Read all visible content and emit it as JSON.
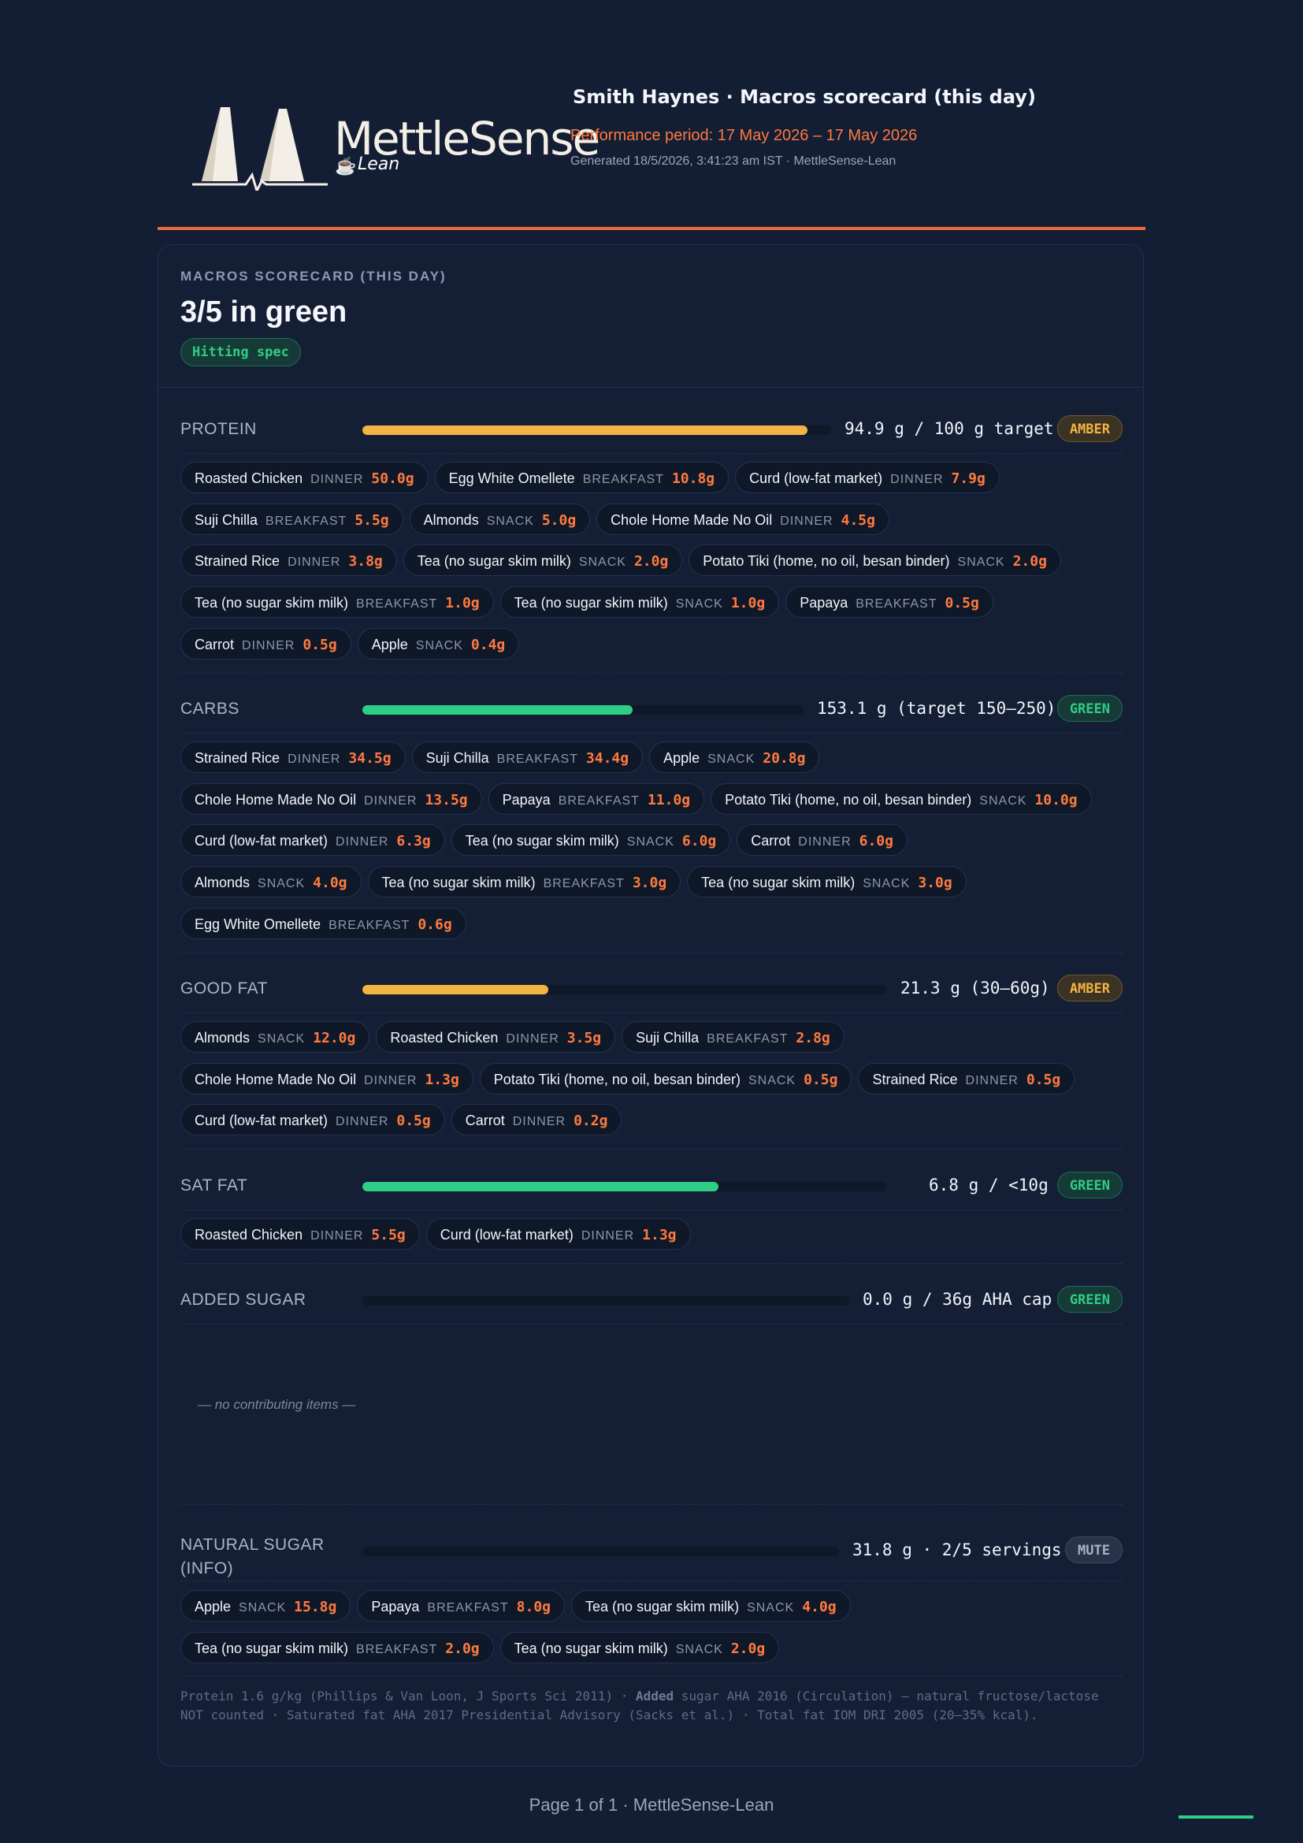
{
  "header": {
    "brand_name": "MettleSense",
    "brand_sub": "Lean",
    "title": "Smith Haynes · Macros scorecard (this day)",
    "period": "Performance period: 17 May 2026 – 17 May 2026",
    "generated": "Generated 18/5/2026, 3:41:23 am IST · MettleSense-Lean"
  },
  "colors": {
    "amber": "#f3b441",
    "green": "#2fce86",
    "accent": "#ff7a3d",
    "rule": "#ef6a3a"
  },
  "card": {
    "kicker": "MACROS SCORECARD (THIS DAY)",
    "score": "3/5 in green",
    "badge": "Hitting spec"
  },
  "metrics": [
    {
      "label": "PROTEIN",
      "value": "94.9 g / 100 g target",
      "status": "AMBER",
      "fill_fraction": 0.949,
      "bar_color": "amber",
      "rows": [
        [
          {
            "name": "Roasted Chicken",
            "meal": "DINNER",
            "amt": "50.0g"
          },
          {
            "name": "Egg White Omellete",
            "meal": "BREAKFAST",
            "amt": "10.8g"
          },
          {
            "name": "Curd (low-fat market)",
            "meal": "DINNER",
            "amt": "7.9g"
          }
        ],
        [
          {
            "name": "Suji Chilla",
            "meal": "BREAKFAST",
            "amt": "5.5g"
          },
          {
            "name": "Almonds",
            "meal": "SNACK",
            "amt": "5.0g"
          },
          {
            "name": "Chole Home Made No Oil",
            "meal": "DINNER",
            "amt": "4.5g"
          }
        ],
        [
          {
            "name": "Strained Rice",
            "meal": "DINNER",
            "amt": "3.8g"
          },
          {
            "name": "Tea (no sugar skim milk)",
            "meal": "SNACK",
            "amt": "2.0g"
          },
          {
            "name": "Potato Tiki (home, no oil, besan binder)",
            "meal": "SNACK",
            "amt": "2.0g"
          }
        ],
        [
          {
            "name": "Tea (no sugar skim milk)",
            "meal": "BREAKFAST",
            "amt": "1.0g"
          },
          {
            "name": "Tea (no sugar skim milk)",
            "meal": "SNACK",
            "amt": "1.0g"
          },
          {
            "name": "Papaya",
            "meal": "BREAKFAST",
            "amt": "0.5g"
          }
        ],
        [
          {
            "name": "Carrot",
            "meal": "DINNER",
            "amt": "0.5g"
          },
          {
            "name": "Apple",
            "meal": "SNACK",
            "amt": "0.4g"
          }
        ]
      ]
    },
    {
      "label": "CARBS",
      "value": "153.1 g (target 150–250)",
      "status": "GREEN",
      "fill_fraction": 0.612,
      "bar_color": "green",
      "rows": [
        [
          {
            "name": "Strained Rice",
            "meal": "DINNER",
            "amt": "34.5g"
          },
          {
            "name": "Suji Chilla",
            "meal": "BREAKFAST",
            "amt": "34.4g"
          },
          {
            "name": "Apple",
            "meal": "SNACK",
            "amt": "20.8g"
          }
        ],
        [
          {
            "name": "Chole Home Made No Oil",
            "meal": "DINNER",
            "amt": "13.5g"
          },
          {
            "name": "Papaya",
            "meal": "BREAKFAST",
            "amt": "11.0g"
          },
          {
            "name": "Potato Tiki (home, no oil, besan binder)",
            "meal": "SNACK",
            "amt": "10.0g"
          }
        ],
        [
          {
            "name": "Curd (low-fat market)",
            "meal": "DINNER",
            "amt": "6.3g"
          },
          {
            "name": "Tea (no sugar skim milk)",
            "meal": "SNACK",
            "amt": "6.0g"
          },
          {
            "name": "Carrot",
            "meal": "DINNER",
            "amt": "6.0g"
          }
        ],
        [
          {
            "name": "Almonds",
            "meal": "SNACK",
            "amt": "4.0g"
          },
          {
            "name": "Tea (no sugar skim milk)",
            "meal": "BREAKFAST",
            "amt": "3.0g"
          },
          {
            "name": "Tea (no sugar skim milk)",
            "meal": "SNACK",
            "amt": "3.0g"
          }
        ],
        [
          {
            "name": "Egg White Omellete",
            "meal": "BREAKFAST",
            "amt": "0.6g"
          }
        ]
      ]
    },
    {
      "label": "GOOD FAT",
      "value": "21.3 g (30–60g)",
      "status": "AMBER",
      "fill_fraction": 0.355,
      "bar_color": "amber",
      "rows": [
        [
          {
            "name": "Almonds",
            "meal": "SNACK",
            "amt": "12.0g"
          },
          {
            "name": "Roasted Chicken",
            "meal": "DINNER",
            "amt": "3.5g"
          },
          {
            "name": "Suji Chilla",
            "meal": "BREAKFAST",
            "amt": "2.8g"
          }
        ],
        [
          {
            "name": "Chole Home Made No Oil",
            "meal": "DINNER",
            "amt": "1.3g"
          },
          {
            "name": "Potato Tiki (home, no oil, besan binder)",
            "meal": "SNACK",
            "amt": "0.5g"
          },
          {
            "name": "Strained Rice",
            "meal": "DINNER",
            "amt": "0.5g"
          }
        ],
        [
          {
            "name": "Curd (low-fat market)",
            "meal": "DINNER",
            "amt": "0.5g"
          },
          {
            "name": "Carrot",
            "meal": "DINNER",
            "amt": "0.2g"
          }
        ]
      ]
    },
    {
      "label": "SAT FAT",
      "value": "6.8 g / <10g",
      "status": "GREEN",
      "fill_fraction": 0.68,
      "bar_color": "green",
      "rows": [
        [
          {
            "name": "Roasted Chicken",
            "meal": "DINNER",
            "amt": "5.5g"
          },
          {
            "name": "Curd (low-fat market)",
            "meal": "DINNER",
            "amt": "1.3g"
          }
        ]
      ]
    },
    {
      "label": "ADDED SUGAR",
      "value": "0.0 g / 36g AHA cap",
      "status": "GREEN",
      "fill_fraction": 0.0,
      "bar_color": "green",
      "empty_note": "— no contributing items —",
      "rows": []
    },
    {
      "label": "NATURAL SUGAR (INFO)",
      "value": "31.8 g · 2/5 servings",
      "status": "MUTE",
      "fill_fraction": 0.0,
      "bar_color": "green",
      "rows": [
        [
          {
            "name": "Apple",
            "meal": "SNACK",
            "amt": "15.8g"
          },
          {
            "name": "Papaya",
            "meal": "BREAKFAST",
            "amt": "8.0g"
          },
          {
            "name": "Tea (no sugar skim milk)",
            "meal": "SNACK",
            "amt": "4.0g"
          }
        ],
        [
          {
            "name": "Tea (no sugar skim milk)",
            "meal": "BREAKFAST",
            "amt": "2.0g"
          },
          {
            "name": "Tea (no sugar skim milk)",
            "meal": "SNACK",
            "amt": "2.0g"
          }
        ]
      ]
    }
  ],
  "footer_note": {
    "part1": "Protein 1.6 g/kg (Phillips & Van Loon, J Sports Sci 2011) · ",
    "bold": "Added",
    "part2": " sugar AHA 2016 (Circulation) — natural fructose/lactose NOT counted · Saturated fat AHA 2017 Presidential Advisory (Sacks et al.) · Total fat IOM DRI 2005 (20–35% kcal)."
  },
  "page_label": "Page 1 of 1 · MettleSense-Lean"
}
